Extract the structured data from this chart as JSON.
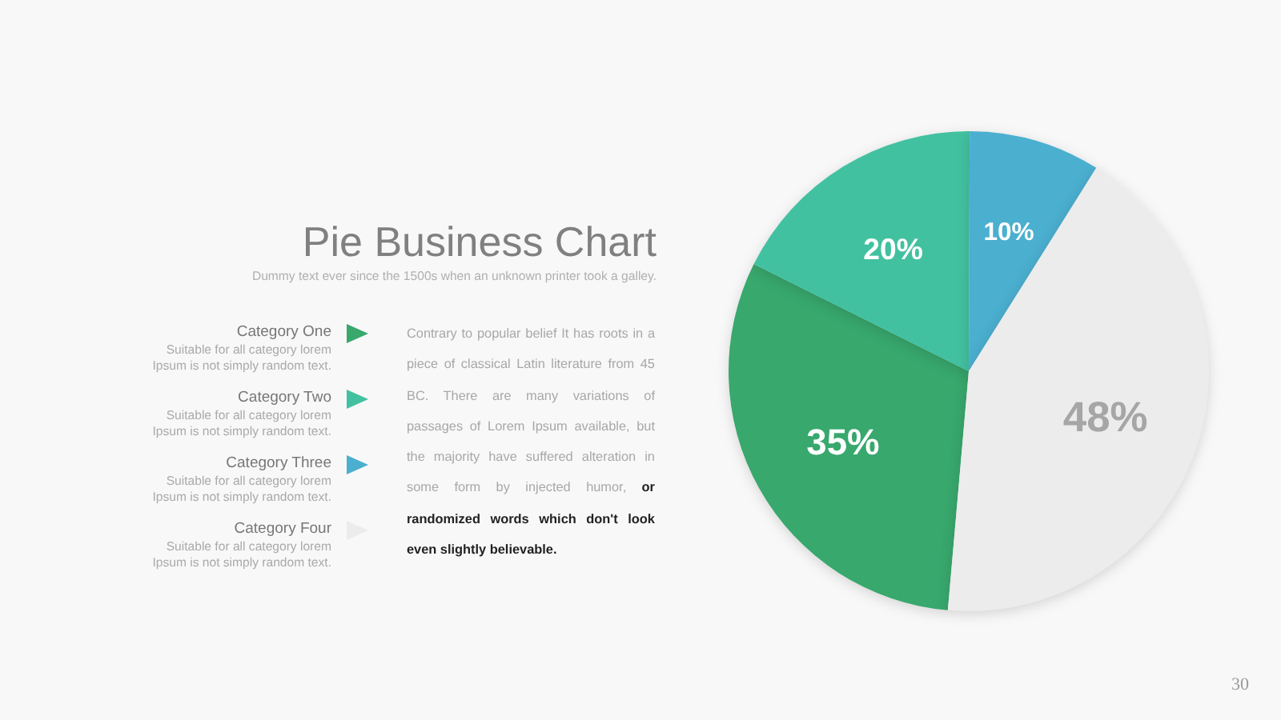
{
  "chart_data": {
    "type": "pie",
    "title": "Pie Business Chart",
    "subtitle": "Dummy text ever since the 1500s when an unknown printer took a galley.",
    "categories": [
      "Category One",
      "Category Two",
      "Category Three",
      "Category Four"
    ],
    "values": [
      35,
      20,
      10,
      48
    ],
    "colors": [
      "#38a86d",
      "#42c1a0",
      "#4bafd0",
      "#ececec"
    ],
    "value_labels": [
      "35%",
      "20%",
      "10%",
      "48%"
    ],
    "legend": "left",
    "annotations": [
      "Suitable for all category lorem Ipsum is not simply random text.",
      "Suitable for all category lorem Ipsum is not simply random text.",
      "Suitable for all category lorem Ipsum is not simply random text.",
      "Suitable for all category lorem Ipsum is not simply random text.",
      "Contrary to popular belief It has roots in a piece of classical Latin literature from 45 BC. There are many variations of passages of Lorem Ipsum available, but the majority have suffered alteration in some form by injected humor,",
      "or randomized words which don't look even slightly believable.",
      "30"
    ]
  }
}
